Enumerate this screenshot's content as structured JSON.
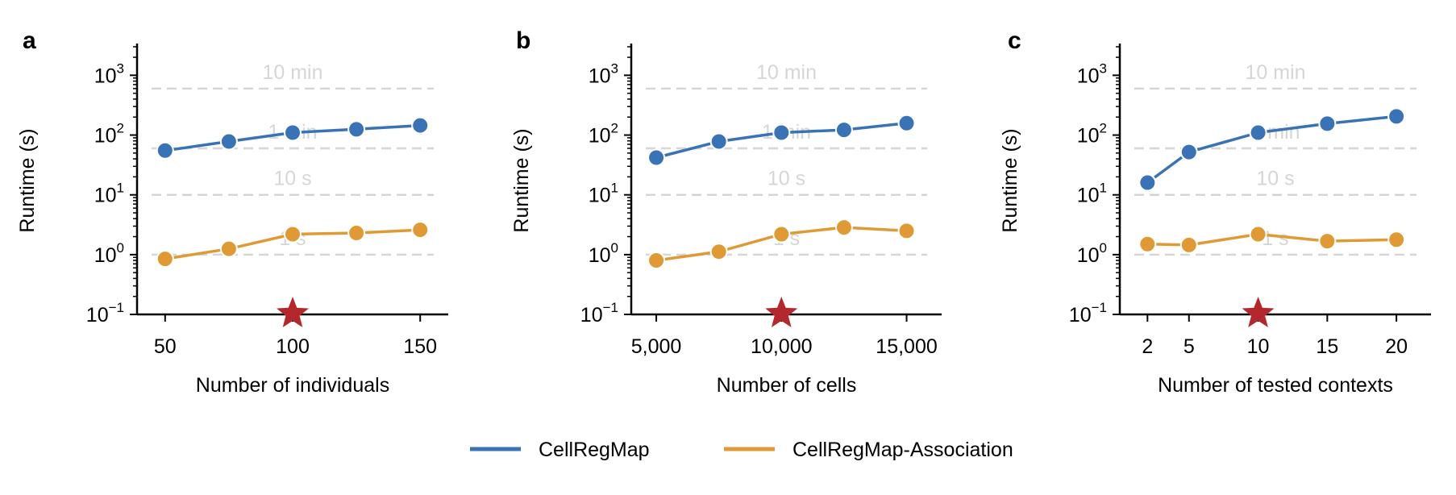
{
  "chart_data": [
    {
      "panel": "a",
      "type": "line",
      "xlabel": "Number of individuals",
      "ylabel": "Runtime (s)",
      "yscale": "log",
      "ylim": [
        0.1,
        3000
      ],
      "xlim": [
        39,
        161
      ],
      "xticks": [
        50,
        100,
        150
      ],
      "xtick_labels": [
        "50",
        "100",
        "150"
      ],
      "highlight_x": 100,
      "reference_lines": [
        {
          "value": 600,
          "label": "10 min"
        },
        {
          "value": 60,
          "label": "1 min"
        },
        {
          "value": 10,
          "label": "10 s"
        },
        {
          "value": 1,
          "label": "1 s"
        }
      ],
      "series": [
        {
          "name": "CellRegMap",
          "x": [
            50,
            75,
            100,
            125,
            150
          ],
          "values": [
            55,
            78,
            110,
            125,
            145
          ]
        },
        {
          "name": "CellRegMap-Association",
          "x": [
            50,
            75,
            100,
            125,
            150
          ],
          "values": [
            0.85,
            1.25,
            2.2,
            2.3,
            2.6
          ]
        }
      ]
    },
    {
      "panel": "b",
      "type": "line",
      "xlabel": "Number of cells",
      "ylabel": "Runtime (s)",
      "yscale": "log",
      "ylim": [
        0.1,
        3000
      ],
      "xlim": [
        4000,
        16400
      ],
      "xticks": [
        5000,
        10000,
        15000
      ],
      "xtick_labels": [
        "5,000",
        "10,000",
        "15,000"
      ],
      "highlight_x": 10000,
      "reference_lines": [
        {
          "value": 600,
          "label": "10 min"
        },
        {
          "value": 60,
          "label": "1 min"
        },
        {
          "value": 10,
          "label": "10 s"
        },
        {
          "value": 1,
          "label": "1 s"
        }
      ],
      "series": [
        {
          "name": "CellRegMap",
          "x": [
            5000,
            7500,
            10000,
            12500,
            15000
          ],
          "values": [
            42,
            78,
            110,
            122,
            158
          ]
        },
        {
          "name": "CellRegMap-Association",
          "x": [
            5000,
            7500,
            10000,
            12500,
            15000
          ],
          "values": [
            0.8,
            1.12,
            2.2,
            2.85,
            2.5
          ]
        }
      ]
    },
    {
      "panel": "c",
      "type": "line",
      "xlabel": "Number of tested contexts",
      "ylabel": "Runtime (s)",
      "yscale": "log",
      "ylim": [
        0.1,
        3000
      ],
      "xlim": [
        0,
        22.5
      ],
      "xticks": [
        2,
        5,
        10,
        15,
        20
      ],
      "xtick_labels": [
        "2",
        "5",
        "10",
        "15",
        "20"
      ],
      "highlight_x": 10,
      "reference_lines": [
        {
          "value": 600,
          "label": "10 min"
        },
        {
          "value": 60,
          "label": "1 min"
        },
        {
          "value": 10,
          "label": "10 s"
        },
        {
          "value": 1,
          "label": "1 s"
        }
      ],
      "series": [
        {
          "name": "CellRegMap",
          "x": [
            2,
            5,
            10,
            15,
            20
          ],
          "values": [
            16,
            52,
            110,
            155,
            205
          ]
        },
        {
          "name": "CellRegMap-Association",
          "x": [
            2,
            5,
            10,
            15,
            20
          ],
          "values": [
            1.5,
            1.45,
            2.2,
            1.68,
            1.78
          ]
        }
      ]
    }
  ],
  "legend": [
    {
      "label": "CellRegMap",
      "color": "#3a73b5"
    },
    {
      "label": "CellRegMap-Association",
      "color": "#e09a35"
    }
  ],
  "colors": {
    "CellRegMap": "#3a73b5",
    "CellRegMap-Association": "#e09a35",
    "reference_line": "#d6d6d6",
    "star": "#b3282d"
  }
}
